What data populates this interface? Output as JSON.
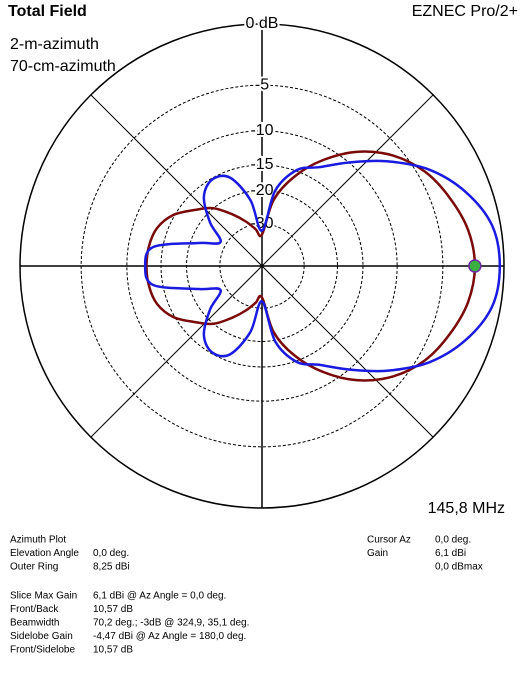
{
  "chart_data": {
    "type": "polar",
    "title": "Total Field",
    "program": "EZNEC Pro/2+",
    "frequency": "145,8 MHz",
    "rscale": "arrl_log",
    "rticks": [
      {
        "value": 0,
        "label": "0 dB"
      },
      -5,
      -10,
      -15,
      -20,
      -30
    ],
    "theta": [
      0,
      10,
      20,
      30,
      40,
      50,
      60,
      70,
      80,
      90,
      100,
      110,
      120,
      130,
      140,
      150,
      160,
      170,
      180,
      190,
      200,
      210,
      220,
      230,
      240,
      250,
      260,
      270,
      280,
      290,
      300,
      310,
      320,
      330,
      340,
      350
    ],
    "series": [
      {
        "name": "2-m-azimuth",
        "color": "#7a0a0a",
        "values": [
          -2.2,
          -2.5,
          -3.3,
          -4.3,
          -5.9,
          -8.3,
          -11.7,
          -16,
          -22,
          -35,
          -32,
          -28,
          -24,
          -20,
          -17.5,
          -14.8,
          -13.3,
          -12.8,
          -12.7,
          -12.8,
          -13.3,
          -14.8,
          -17.5,
          -20,
          -24,
          -28,
          -32,
          -35,
          -22,
          -16,
          -11.7,
          -8.3,
          -5.9,
          -4.3,
          -3.3,
          -2.5
        ]
      },
      {
        "name": "70-cm-azimuth",
        "color": "#1a1ae0",
        "values": [
          -0.3,
          -0.6,
          -1.9,
          -3.9,
          -6.8,
          -10,
          -12.9,
          -14.8,
          -19.7,
          -33,
          -22,
          -16.2,
          -15.2,
          -16.9,
          -21.8,
          -27.8,
          -22,
          -13.5,
          -12.5,
          -13.5,
          -22,
          -27.8,
          -21.8,
          -16.9,
          -15.2,
          -16.2,
          -22,
          -33,
          -19.7,
          -14.8,
          -12.9,
          -10,
          -6.8,
          -3.9,
          -1.9,
          -0.6
        ]
      }
    ]
  },
  "info": {
    "left": [
      [
        "Azimuth Plot",
        ""
      ],
      [
        "Elevation Angle",
        "0,0 deg."
      ],
      [
        "Outer Ring",
        "8,25 dBi"
      ]
    ],
    "summary": [
      [
        "Slice Max Gain",
        "6,1 dBi @ Az Angle = 0,0 deg."
      ],
      [
        "Front/Back",
        "10,57 dB"
      ],
      [
        "Beamwidth",
        "70,2 deg.; -3dB @ 324,9, 35,1 deg."
      ],
      [
        "Sidelobe Gain",
        "-4,47 dBi @ Az Angle = 180,0 deg."
      ],
      [
        "Front/Sidelobe",
        "10,57 dB"
      ]
    ],
    "cursor": [
      [
        "Cursor Az",
        "0,0 deg."
      ],
      [
        "Gain",
        "6,1 dBi"
      ],
      [
        "",
        "0,0 dBmax"
      ]
    ]
  }
}
